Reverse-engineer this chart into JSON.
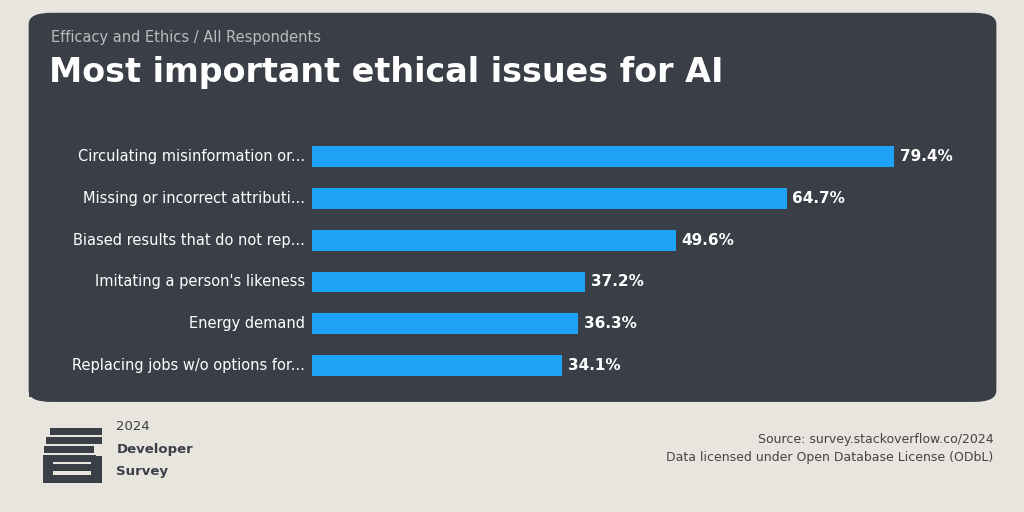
{
  "subtitle": "Efficacy and Ethics / All Respondents",
  "title": "Most important ethical issues for AI",
  "categories": [
    "Circulating misinformation or...",
    "Missing or incorrect attributi...",
    "Biased results that do not rep...",
    "Imitating a person's likeness",
    "Energy demand",
    "Replacing jobs w/o options for..."
  ],
  "values": [
    79.4,
    64.7,
    49.6,
    37.2,
    36.3,
    34.1
  ],
  "bar_color": "#1ca3f5",
  "background_color": "#3a3f47",
  "outer_background": "#e8e4de",
  "text_color": "#ffffff",
  "subtitle_color": "#bbbbbb",
  "title_fontsize": 24,
  "subtitle_fontsize": 10.5,
  "label_fontsize": 10.5,
  "value_fontsize": 11,
  "source_text": "Source: survey.stackoverflow.co/2024\nData licensed under Open Database License (ODbL)",
  "source_color": "#444444",
  "logo_color": "#3a3f47",
  "xlim_max": 88
}
